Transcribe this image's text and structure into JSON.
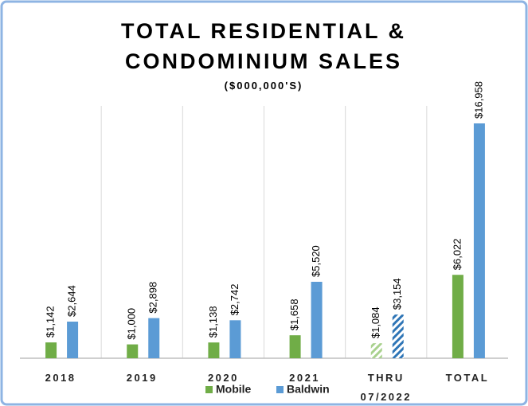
{
  "chart_data": {
    "type": "bar",
    "title": "TOTAL RESIDENTIAL & CONDOMINIUM SALES",
    "subtitle": "($000,000'S)",
    "categories": [
      "2018",
      "2019",
      "2020",
      "2021",
      "THRU 07/2022",
      "TOTAL"
    ],
    "hatched": [
      false,
      false,
      false,
      false,
      true,
      false
    ],
    "series": [
      {
        "name": "Mobile",
        "color": "#70ad47",
        "values": [
          1142,
          1000,
          1138,
          1658,
          1084,
          6022
        ],
        "value_labels": [
          "$1,142",
          "$1,000",
          "$1,138",
          "$1,658",
          "$1,084",
          "$6,022"
        ]
      },
      {
        "name": "Baldwin",
        "color": "#5b9bd5",
        "values": [
          2644,
          2898,
          2742,
          5520,
          3154,
          16958
        ],
        "value_labels": [
          "$2,644",
          "$2,898",
          "$2,742",
          "$5,520",
          "$3,154",
          "$16,958"
        ]
      }
    ],
    "legend": "bottom"
  }
}
